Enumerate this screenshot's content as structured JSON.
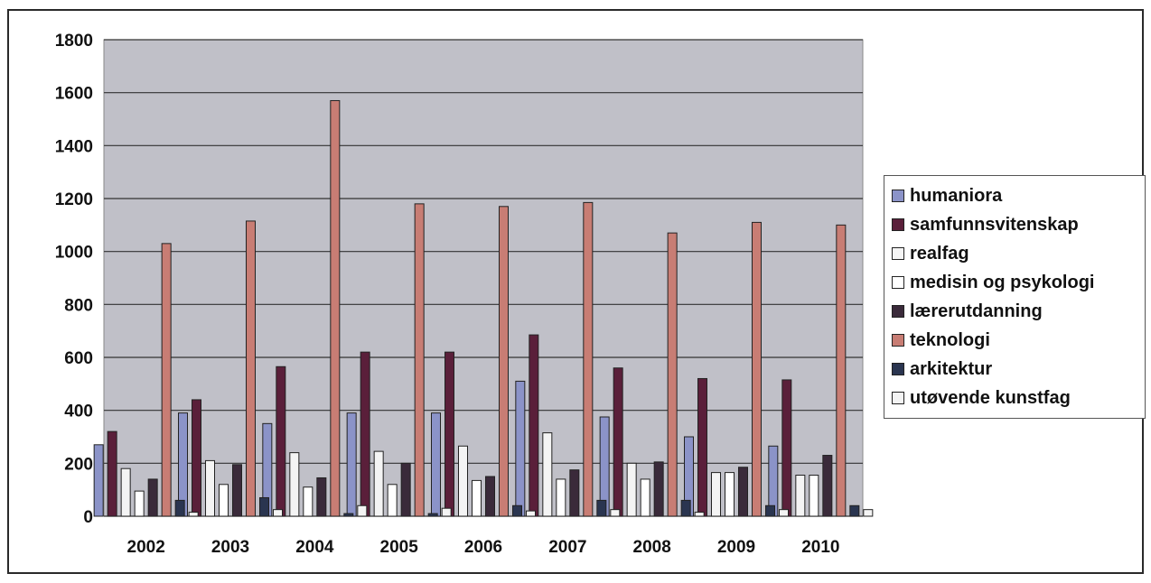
{
  "chart_data": {
    "type": "bar",
    "title": "",
    "xlabel": "",
    "ylabel": "",
    "categories": [
      "2002",
      "2003",
      "2004",
      "2005",
      "2006",
      "2007",
      "2008",
      "2009",
      "2010"
    ],
    "ylim": [
      0,
      1800
    ],
    "yticks": [
      0,
      200,
      400,
      600,
      800,
      1000,
      1200,
      1400,
      1600,
      1800
    ],
    "grid": true,
    "legend_position": "right",
    "plot_background": "#c0c0c8",
    "series": [
      {
        "name": "humaniora",
        "color": "#8b93c8",
        "values": [
          270,
          390,
          350,
          390,
          390,
          510,
          375,
          300,
          265
        ]
      },
      {
        "name": "samfunnsvitenskap",
        "color": "#5a1f3a",
        "values": [
          320,
          440,
          565,
          620,
          620,
          685,
          560,
          520,
          515
        ]
      },
      {
        "name": "realfag",
        "color": "#f4f4f4",
        "values": [
          180,
          210,
          240,
          245,
          265,
          315,
          200,
          165,
          155
        ]
      },
      {
        "name": "medisin og psykologi",
        "color": "#ffffff",
        "values": [
          95,
          120,
          110,
          120,
          135,
          140,
          140,
          165,
          155
        ]
      },
      {
        "name": "lærerutdanning",
        "color": "#3a2a3a",
        "values": [
          140,
          195,
          145,
          200,
          150,
          175,
          205,
          185,
          230
        ]
      },
      {
        "name": "teknologi",
        "color": "#c87d74",
        "values": [
          1030,
          1115,
          1570,
          1180,
          1170,
          1185,
          1070,
          1110,
          1100
        ]
      },
      {
        "name": "arkitektur",
        "color": "#2a3550",
        "values": [
          60,
          70,
          10,
          10,
          40,
          60,
          60,
          40,
          40
        ]
      },
      {
        "name": "utøvende kunstfag",
        "color": "#f4f4f4",
        "values": [
          15,
          25,
          40,
          30,
          20,
          25,
          15,
          25,
          25
        ]
      }
    ]
  }
}
